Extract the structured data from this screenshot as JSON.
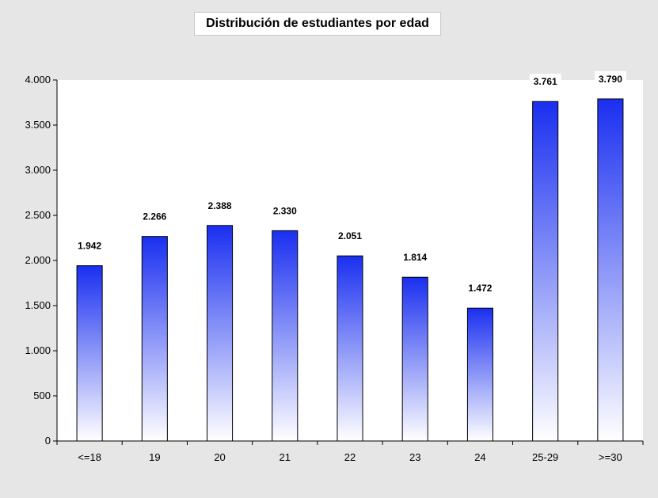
{
  "chart_data": {
    "type": "bar",
    "title": "Distribución de estudiantes por edad",
    "categories": [
      "<=18",
      "19",
      "20",
      "21",
      "22",
      "23",
      "24",
      "25-29",
      ">=30"
    ],
    "values": [
      1942,
      2266,
      2388,
      2330,
      2051,
      1814,
      1472,
      3761,
      3790
    ],
    "value_labels": [
      "1.942",
      "2.266",
      "2.388",
      "2.330",
      "2.051",
      "1.814",
      "1.472",
      "3.761",
      "3.790"
    ],
    "ylim": [
      0,
      4000
    ],
    "yticks": [
      0,
      500,
      1000,
      1500,
      2000,
      2500,
      3000,
      3500,
      4000
    ],
    "ytick_labels": [
      "0",
      "500",
      "1.000",
      "1.500",
      "2.000",
      "2.500",
      "3.000",
      "3.500",
      "4.000"
    ],
    "xlabel": "",
    "ylabel": "",
    "grid": false,
    "legend": "none",
    "colors": {
      "bar_top": "#1a2ff0",
      "bar_bottom": "#ffffff",
      "bar_border": "#000000",
      "plot_background": "#ffffff",
      "page_background": "#e6e6e6"
    }
  }
}
